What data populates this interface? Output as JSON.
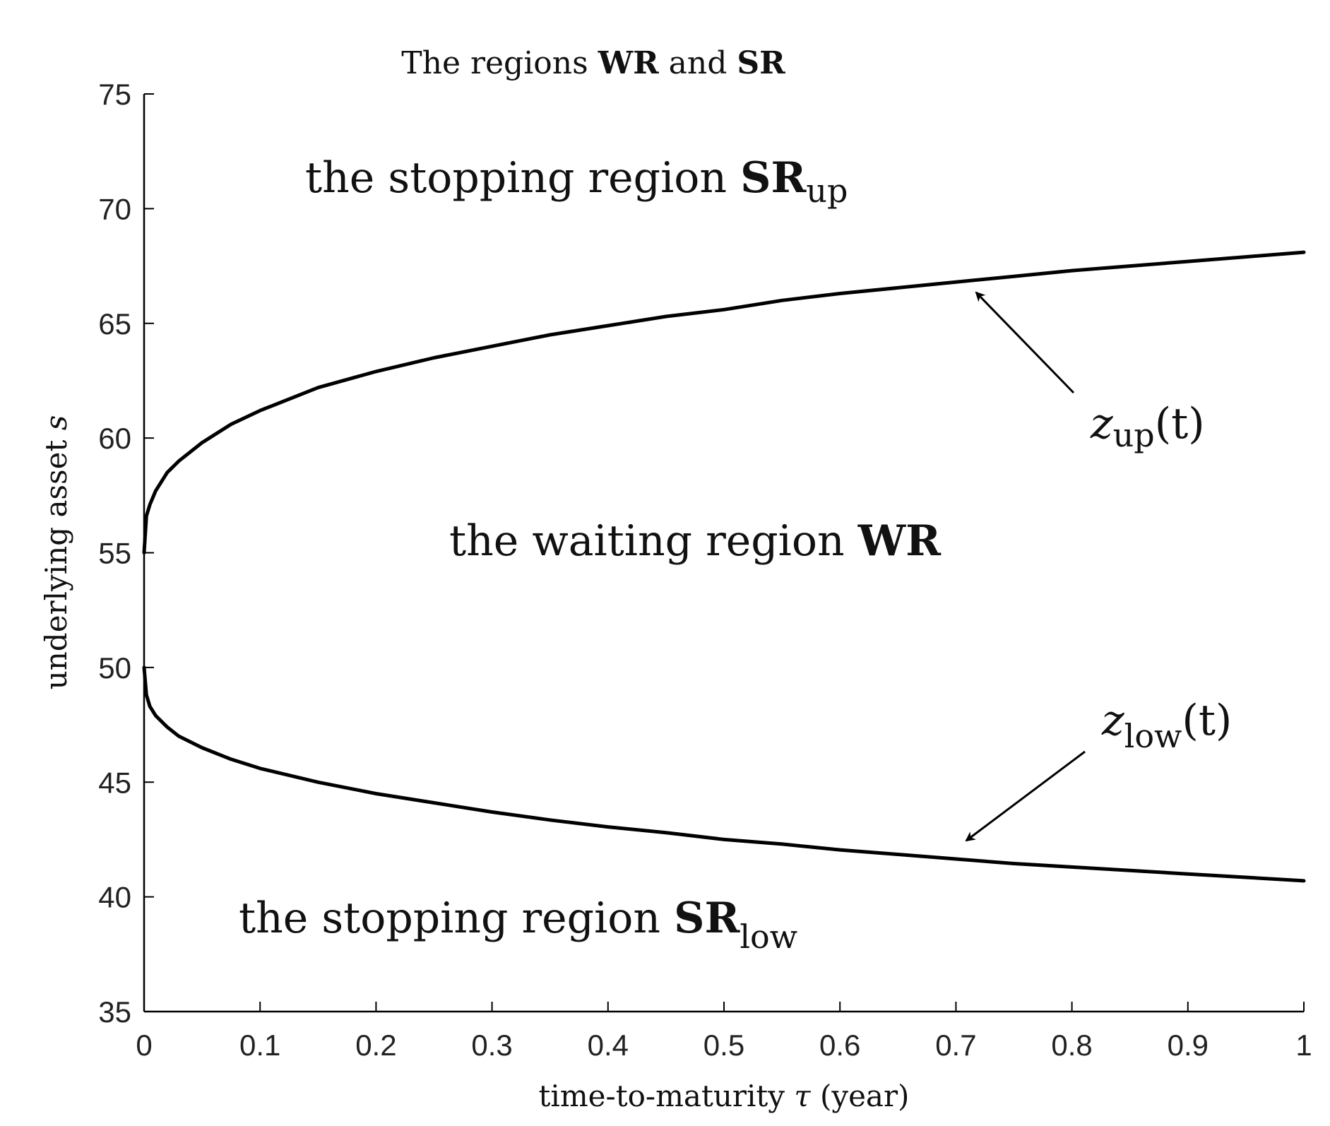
{
  "chart_data": {
    "type": "line",
    "title": {
      "prefix": "The regions ",
      "bold1": "WR",
      "mid": " and ",
      "bold2": "SR"
    },
    "xlabel": {
      "prefix": "time-to-maturity ",
      "symbol": "τ",
      "suffix": " (year)"
    },
    "ylabel": {
      "prefix": "underlying asset ",
      "symbol": "s"
    },
    "xlim": [
      0,
      1
    ],
    "ylim": [
      35,
      75
    ],
    "xticks": [
      0,
      0.1,
      0.2,
      0.3,
      0.4,
      0.5,
      0.6,
      0.7,
      0.8,
      0.9,
      1
    ],
    "xtick_labels": [
      "0",
      "0.1",
      "0.2",
      "0.3",
      "0.4",
      "0.5",
      "0.6",
      "0.7",
      "0.8",
      "0.9",
      "1"
    ],
    "yticks": [
      35,
      40,
      45,
      50,
      55,
      60,
      65,
      70,
      75
    ],
    "ytick_labels": [
      "35",
      "40",
      "45",
      "50",
      "55",
      "60",
      "65",
      "70",
      "75"
    ],
    "grid": false,
    "line_color": "#000000",
    "series": [
      {
        "key": "upper",
        "x": [
          0,
          0.002,
          0.005,
          0.01,
          0.02,
          0.03,
          0.05,
          0.075,
          0.1,
          0.15,
          0.2,
          0.25,
          0.3,
          0.35,
          0.4,
          0.45,
          0.5,
          0.55,
          0.6,
          0.65,
          0.7,
          0.75,
          0.8,
          0.85,
          0.9,
          0.95,
          1.0
        ],
        "y": [
          55.0,
          56.6,
          57.1,
          57.7,
          58.5,
          59.0,
          59.8,
          60.6,
          61.2,
          62.2,
          62.9,
          63.5,
          64.0,
          64.5,
          64.9,
          65.3,
          65.6,
          66.0,
          66.3,
          66.55,
          66.8,
          67.05,
          67.3,
          67.5,
          67.7,
          67.9,
          68.1
        ]
      },
      {
        "key": "lower",
        "x": [
          0,
          0.002,
          0.005,
          0.01,
          0.02,
          0.03,
          0.05,
          0.075,
          0.1,
          0.15,
          0.2,
          0.25,
          0.3,
          0.35,
          0.4,
          0.45,
          0.5,
          0.55,
          0.6,
          0.65,
          0.7,
          0.75,
          0.8,
          0.85,
          0.9,
          0.95,
          1.0
        ],
        "y": [
          50.0,
          48.8,
          48.3,
          47.9,
          47.4,
          47.0,
          46.5,
          46.0,
          45.6,
          45.0,
          44.5,
          44.1,
          43.7,
          43.35,
          43.05,
          42.8,
          42.5,
          42.3,
          42.05,
          41.85,
          41.65,
          41.45,
          41.3,
          41.15,
          41.0,
          40.85,
          40.7
        ]
      }
    ],
    "annotations": {
      "region_up": {
        "text": "the stopping region ",
        "bold": "SR",
        "sub": "up"
      },
      "region_wait": {
        "text": "the waiting region ",
        "bold": "WR"
      },
      "region_low": {
        "text": "the stopping region ",
        "bold": "SR",
        "sub": "low"
      },
      "curve_up": {
        "symbol": "z",
        "sub": "up",
        "arg": "(t)"
      },
      "curve_low": {
        "symbol": "z",
        "sub": "low",
        "arg": "(t)"
      }
    }
  }
}
